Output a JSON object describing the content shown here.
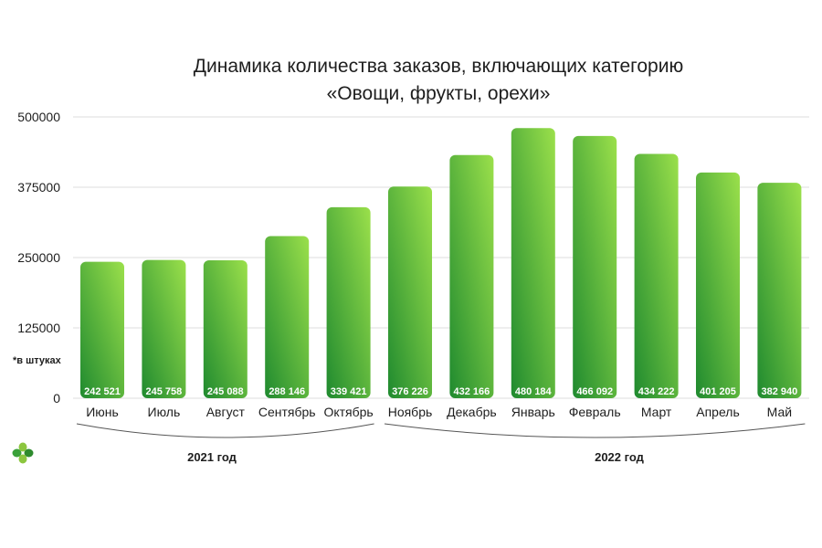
{
  "title": {
    "line1": "Динамика количества заказов, включающих категорию",
    "line2": "«Овощи, фрукты, орехи»"
  },
  "unit_note": "*в штуках",
  "groups": [
    {
      "label": "2021 год"
    },
    {
      "label": "2022 год"
    }
  ],
  "colors": {
    "bar_top": "#9be04b",
    "bar_bottom": "#1f8a2f",
    "grid": "#dddddd",
    "text": "#1e1e1e",
    "label_text": "#ffffff",
    "bracket": "#555555"
  },
  "chart_data": {
    "type": "bar",
    "categories": [
      "Июнь",
      "Июль",
      "Август",
      "Сентябрь",
      "Октябрь",
      "Ноябрь",
      "Декабрь",
      "Январь",
      "Февраль",
      "Март",
      "Апрель",
      "Май"
    ],
    "values": [
      242521,
      245758,
      245088,
      288146,
      339421,
      376226,
      432166,
      480184,
      466092,
      434222,
      401205,
      382940
    ],
    "value_labels": [
      "242 521",
      "245 758",
      "245 088",
      "288 146",
      "339 421",
      "376 226",
      "432 166",
      "480 184",
      "466 092",
      "434 222",
      "401 205",
      "382 940"
    ],
    "yticks": [
      0,
      125000,
      250000,
      375000,
      500000
    ],
    "ytick_labels": [
      "0",
      "125000",
      "250000",
      "375000",
      "500000"
    ],
    "ylim": [
      0,
      500000
    ],
    "grid": true,
    "legend": "none",
    "title": "Динамика количества заказов, включающих категорию «Овощи, фрукты, орехи»"
  }
}
